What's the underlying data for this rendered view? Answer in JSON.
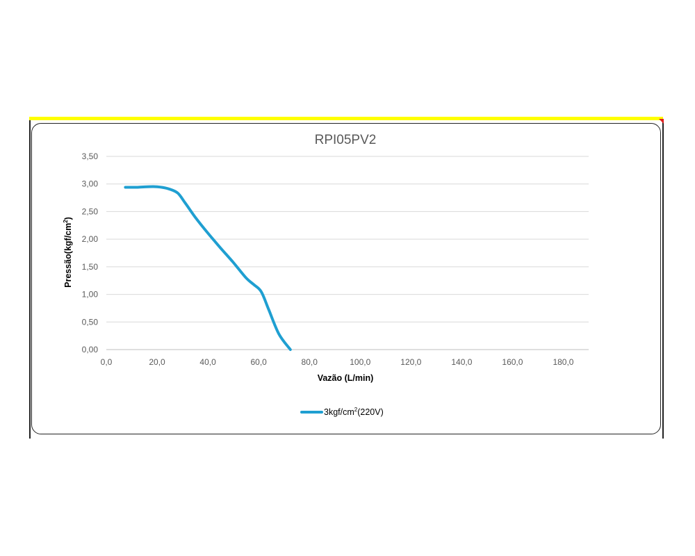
{
  "colors": {
    "accent_strip": "#ffff00",
    "corner_mark": "#e02020",
    "series": "#1f9fd1",
    "grid": "#d9d9d9"
  },
  "chart_data": {
    "type": "line",
    "title": "RPI05PV2",
    "xlabel": "Vazão (L/min)",
    "ylabel_main": "Pressão(kgf/cm",
    "ylabel_sup": "2",
    "ylabel_tail": ")",
    "xlim": [
      0,
      190
    ],
    "ylim": [
      0,
      3.5
    ],
    "x_ticks": [
      "0,0",
      "20,0",
      "40,0",
      "60,0",
      "80,0",
      "100,0",
      "120,0",
      "140,0",
      "160,0",
      "180,0"
    ],
    "y_ticks": [
      "0,00",
      "0,50",
      "1,00",
      "1,50",
      "2,00",
      "2,50",
      "3,00",
      "3,50"
    ],
    "grid": "horizontal",
    "legend_position": "bottom",
    "series": [
      {
        "legend_main": "3kgf/cm",
        "legend_sup": "2",
        "legend_tail": "(220V)",
        "x": [
          7.5,
          12,
          16,
          20,
          24,
          28,
          31,
          35,
          40,
          45,
          50,
          55,
          58,
          61,
          64,
          68,
          72.5
        ],
        "y": [
          2.94,
          2.94,
          2.95,
          2.95,
          2.92,
          2.84,
          2.66,
          2.4,
          2.11,
          1.84,
          1.58,
          1.3,
          1.18,
          1.05,
          0.72,
          0.28,
          0.0
        ]
      }
    ]
  }
}
